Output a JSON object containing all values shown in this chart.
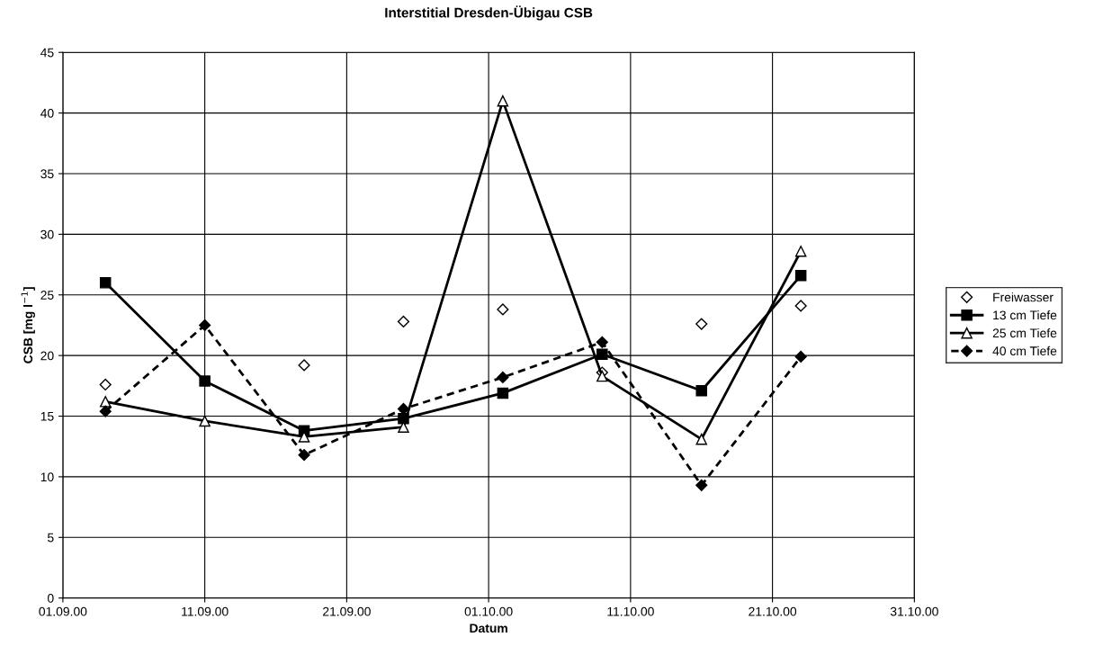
{
  "chart_data": {
    "type": "line",
    "title": "Interstitial Dresden-Übigau CSB",
    "xlabel": "Datum",
    "ylabel": "CSB [mg l$^{−1}$]",
    "x": [
      "2000-09-04",
      "2000-09-11",
      "2000-09-18",
      "2000-09-25",
      "2000-10-02",
      "2000-10-09",
      "2000-10-16",
      "2000-10-23"
    ],
    "series": [
      {
        "name": "Freiwasser",
        "type": "scatter",
        "color": "#000000",
        "marker": "diamond",
        "values": [
          17.6,
          null,
          19.2,
          22.8,
          23.8,
          18.6,
          22.6,
          24.1
        ]
      },
      {
        "name": "13 cm Tiefe",
        "color": "#000000",
        "marker": "square",
        "line_style": "solid",
        "values": [
          26.0,
          17.9,
          13.8,
          14.8,
          16.9,
          20.1,
          17.1,
          26.6
        ]
      },
      {
        "name": "25 cm Tiefe",
        "color": "#000000",
        "marker": "triangle",
        "line_style": "solid",
        "values": [
          16.2,
          14.6,
          13.3,
          14.1,
          41.0,
          18.3,
          13.1,
          28.6
        ]
      },
      {
        "name": "40 cm Tiefe",
        "color": "#000000",
        "marker": "diamond",
        "line_style": "dashed",
        "values": [
          15.4,
          22.5,
          11.8,
          15.6,
          18.2,
          21.1,
          9.3,
          19.9
        ]
      }
    ],
    "xlim": [
      "2000-09-01",
      "2000-10-31"
    ],
    "xticks": [
      {
        "value": "2000-09-01",
        "label": "01.09.00"
      },
      {
        "value": "2000-09-11",
        "label": "11.09.00"
      },
      {
        "value": "2000-09-21",
        "label": "21.09.00"
      },
      {
        "value": "2000-10-01",
        "label": "01.10.00"
      },
      {
        "value": "2000-10-11",
        "label": "11.10.00"
      },
      {
        "value": "2000-10-21",
        "label": "21.10.00"
      },
      {
        "value": "2000-10-31",
        "label": "31.10.00"
      }
    ],
    "ylim": [
      0,
      45
    ],
    "yticks": [
      0,
      5,
      10,
      15,
      20,
      25,
      30,
      35,
      40,
      45
    ],
    "grid": true,
    "legend": "right"
  }
}
